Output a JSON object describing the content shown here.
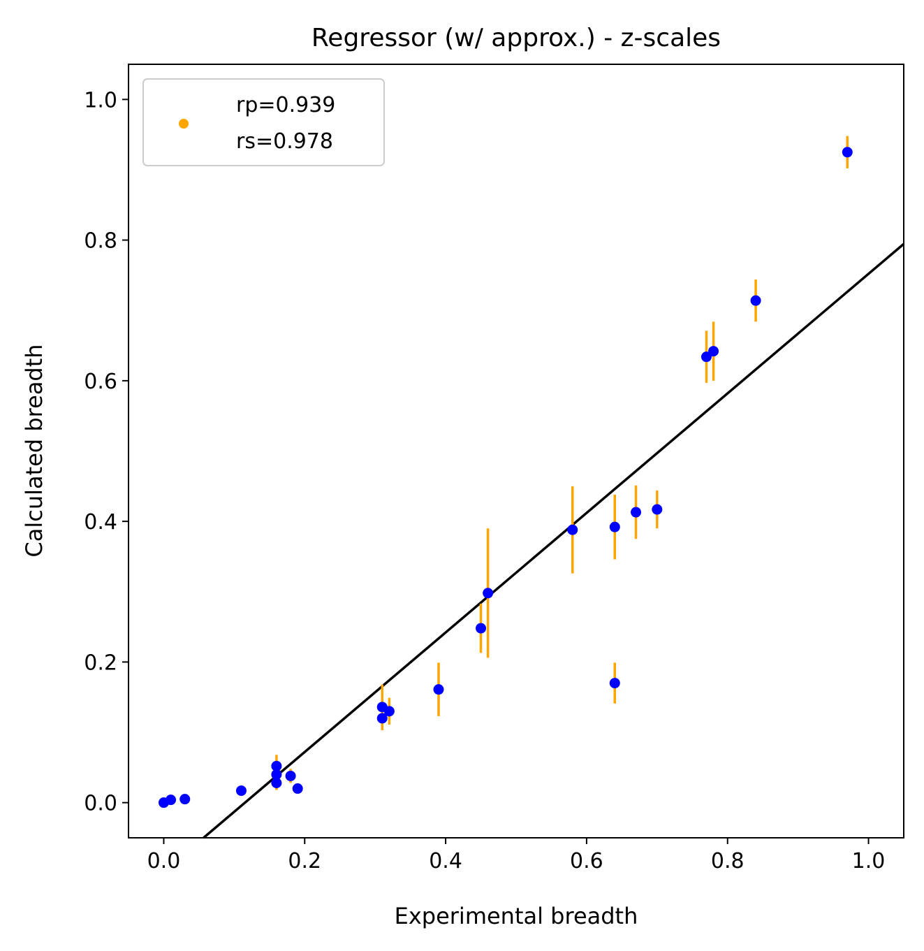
{
  "chart_data": {
    "type": "scatter",
    "title": "Regressor (w/ approx.) - z-scales",
    "xlabel": "Experimental breadth",
    "ylabel": "Calculated breadth",
    "xlim": [
      -0.05,
      1.05
    ],
    "ylim": [
      -0.05,
      1.05
    ],
    "xticks": [
      0.0,
      0.2,
      0.4,
      0.6,
      0.8,
      1.0
    ],
    "yticks": [
      0.0,
      0.2,
      0.4,
      0.6,
      0.8,
      1.0
    ],
    "xtick_labels": [
      "0.0",
      "0.2",
      "0.4",
      "0.6",
      "0.8",
      "1.0"
    ],
    "ytick_labels": [
      "0.0",
      "0.2",
      "0.4",
      "0.6",
      "0.8",
      "1.0"
    ],
    "grid": false,
    "legend": {
      "position": "top-left",
      "lines": [
        "rp=0.939",
        "rs=0.978"
      ]
    },
    "fit_line": {
      "slope": 0.85,
      "intercept": -0.098
    },
    "colors": {
      "points": "#0000ff",
      "error_bars": "#ffa500",
      "fit_line": "#000000"
    },
    "points": [
      {
        "x": 0.0,
        "y": 0.0,
        "err": 0.0
      },
      {
        "x": 0.01,
        "y": 0.004,
        "err": 0.0
      },
      {
        "x": 0.03,
        "y": 0.005,
        "err": 0.0
      },
      {
        "x": 0.11,
        "y": 0.017,
        "err": 0.0
      },
      {
        "x": 0.16,
        "y": 0.052,
        "err": 0.016
      },
      {
        "x": 0.16,
        "y": 0.04,
        "err": 0.02
      },
      {
        "x": 0.16,
        "y": 0.028,
        "err": 0.01
      },
      {
        "x": 0.18,
        "y": 0.038,
        "err": 0.01
      },
      {
        "x": 0.19,
        "y": 0.02,
        "err": 0.0
      },
      {
        "x": 0.31,
        "y": 0.136,
        "err": 0.032
      },
      {
        "x": 0.31,
        "y": 0.12,
        "err": 0.017
      },
      {
        "x": 0.32,
        "y": 0.13,
        "err": 0.019
      },
      {
        "x": 0.39,
        "y": 0.161,
        "err": 0.038
      },
      {
        "x": 0.45,
        "y": 0.248,
        "err": 0.035
      },
      {
        "x": 0.46,
        "y": 0.298,
        "err": 0.092
      },
      {
        "x": 0.58,
        "y": 0.388,
        "err": 0.062
      },
      {
        "x": 0.64,
        "y": 0.392,
        "err": 0.046
      },
      {
        "x": 0.64,
        "y": 0.17,
        "err": 0.029
      },
      {
        "x": 0.67,
        "y": 0.413,
        "err": 0.038
      },
      {
        "x": 0.7,
        "y": 0.417,
        "err": 0.027
      },
      {
        "x": 0.77,
        "y": 0.634,
        "err": 0.037
      },
      {
        "x": 0.78,
        "y": 0.642,
        "err": 0.042
      },
      {
        "x": 0.84,
        "y": 0.714,
        "err": 0.03
      },
      {
        "x": 0.97,
        "y": 0.925,
        "err": 0.023
      }
    ]
  }
}
